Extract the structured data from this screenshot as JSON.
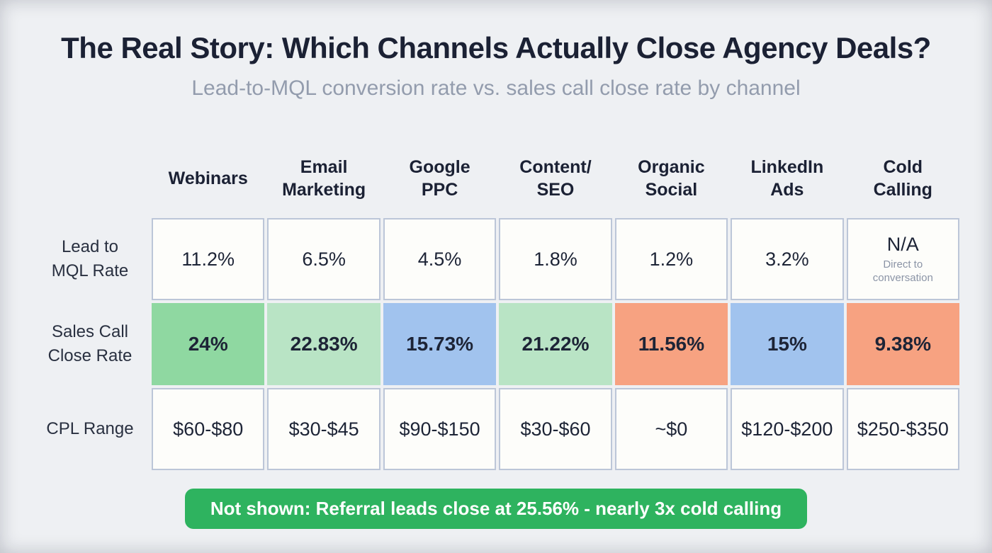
{
  "page": {
    "title": "The Real Story: Which Channels Actually Close Agency Deals?",
    "subtitle": "Lead-to-MQL conversion rate vs. sales call close rate by channel"
  },
  "table": {
    "columns": [
      "Webinars",
      "Email\nMarketing",
      "Google\nPPC",
      "Content/\nSEO",
      "Organic\nSocial",
      "LinkedIn\nAds",
      "Cold\nCalling"
    ],
    "rows": [
      {
        "label": "Lead to\nMQL Rate",
        "values": [
          "11.2%",
          "6.5%",
          "4.5%",
          "1.8%",
          "1.2%",
          "3.2%",
          "N/A"
        ],
        "na_note": "Direct to\nconversation"
      },
      {
        "label": "Sales Call\nClose Rate",
        "values": [
          "24%",
          "22.83%",
          "15.73%",
          "21.22%",
          "11.56%",
          "15%",
          "9.38%"
        ],
        "cell_colors": [
          "#8fd8a1",
          "#b9e4c5",
          "#a1c3ee",
          "#b9e4c5",
          "#f7a281",
          "#a1c3ee",
          "#f7a281"
        ]
      },
      {
        "label": "CPL Range",
        "values": [
          "$60-$80",
          "$30-$45",
          "$90-$150",
          "$30-$60",
          "~$0",
          "$120-$200",
          "$250-$350"
        ]
      }
    ]
  },
  "banner": {
    "text": "Not shown: Referral leads close at 25.56% - nearly 3x cold calling"
  },
  "colors": {
    "background": "#eef0f3",
    "cell_background": "#fdfdfa",
    "cell_border": "#bcc6d8",
    "green_strong": "#8fd8a1",
    "green_light": "#b9e4c5",
    "blue": "#a1c3ee",
    "salmon": "#f7a281",
    "banner_green": "#2eb35f",
    "title_text": "#1b2134",
    "subtitle_text": "#939cad"
  },
  "chart_data": {
    "type": "table",
    "title": "The Real Story: Which Channels Actually Close Agency Deals?",
    "subtitle": "Lead-to-MQL conversion rate vs. sales call close rate by channel",
    "columns": [
      "Webinars",
      "Email Marketing",
      "Google PPC",
      "Content/SEO",
      "Organic Social",
      "LinkedIn Ads",
      "Cold Calling"
    ],
    "metrics": [
      {
        "name": "Lead to MQL Rate",
        "values": [
          "11.2%",
          "6.5%",
          "4.5%",
          "1.8%",
          "1.2%",
          "3.2%",
          "N/A (Direct to conversation)"
        ]
      },
      {
        "name": "Sales Call Close Rate",
        "values": [
          "24%",
          "22.83%",
          "15.73%",
          "21.22%",
          "11.56%",
          "15%",
          "9.38%"
        ],
        "color_coding": {
          "24%": "green",
          "22.83%": "light-green",
          "15.73%": "blue",
          "21.22%": "light-green",
          "11.56%": "salmon",
          "15%": "blue",
          "9.38%": "salmon"
        }
      },
      {
        "name": "CPL Range",
        "values": [
          "$60-$80",
          "$30-$45",
          "$90-$150",
          "$30-$60",
          "~$0",
          "$120-$200",
          "$250-$350"
        ]
      }
    ],
    "annotation": "Not shown: Referral leads close at 25.56% - nearly 3x cold calling",
    "legend_position": "none",
    "grid": true
  }
}
